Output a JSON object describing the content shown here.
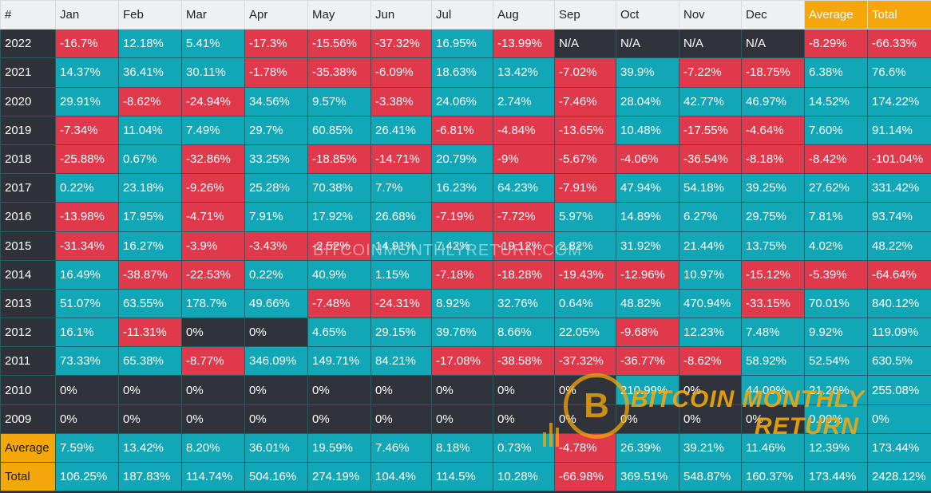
{
  "watermark": {
    "text": "BITCOINMONTHLYRETURN.COM",
    "logo_line1": "BITCOIN MONTHLY",
    "logo_line2": "RETURN"
  },
  "colors": {
    "positive": "#12a7b7",
    "negative": "#e0394c",
    "na": "#30343a",
    "highlight": "#f4a60b",
    "header": "#eef0f2"
  },
  "chart_data": {
    "type": "table",
    "columns": [
      "#",
      "Jan",
      "Feb",
      "Mar",
      "Apr",
      "May",
      "Jun",
      "Jul",
      "Aug",
      "Sep",
      "Oct",
      "Nov",
      "Dec",
      "Average",
      "Total"
    ],
    "rows": [
      {
        "label": "2022",
        "cells": [
          "-16.7%",
          "12.18%",
          "5.41%",
          "-17.3%",
          "-15.56%",
          "-37.32%",
          "16.95%",
          "-13.99%",
          "N/A",
          "N/A",
          "N/A",
          "N/A",
          "-8.29%",
          "-66.33%"
        ]
      },
      {
        "label": "2021",
        "cells": [
          "14.37%",
          "36.41%",
          "30.11%",
          "-1.78%",
          "-35.38%",
          "-6.09%",
          "18.63%",
          "13.42%",
          "-7.02%",
          "39.9%",
          "-7.22%",
          "-18.75%",
          "6.38%",
          "76.6%"
        ]
      },
      {
        "label": "2020",
        "cells": [
          "29.91%",
          "-8.62%",
          "-24.94%",
          "34.56%",
          "9.57%",
          "-3.38%",
          "24.06%",
          "2.74%",
          "-7.46%",
          "28.04%",
          "42.77%",
          "46.97%",
          "14.52%",
          "174.22%"
        ]
      },
      {
        "label": "2019",
        "cells": [
          "-7.34%",
          "11.04%",
          "7.49%",
          "29.7%",
          "60.85%",
          "26.41%",
          "-6.81%",
          "-4.84%",
          "-13.65%",
          "10.48%",
          "-17.55%",
          "-4.64%",
          "7.60%",
          "91.14%"
        ]
      },
      {
        "label": "2018",
        "cells": [
          "-25.88%",
          "0.67%",
          "-32.86%",
          "33.25%",
          "-18.85%",
          "-14.71%",
          "20.79%",
          "-9%",
          "-5.67%",
          "-4.06%",
          "-36.54%",
          "-8.18%",
          "-8.42%",
          "-101.04%"
        ]
      },
      {
        "label": "2017",
        "cells": [
          "0.22%",
          "23.18%",
          "-9.26%",
          "25.28%",
          "70.38%",
          "7.7%",
          "16.23%",
          "64.23%",
          "-7.91%",
          "47.94%",
          "54.18%",
          "39.25%",
          "27.62%",
          "331.42%"
        ]
      },
      {
        "label": "2016",
        "cells": [
          "-13.98%",
          "17.95%",
          "-4.71%",
          "7.91%",
          "17.92%",
          "26.68%",
          "-7.19%",
          "-7.72%",
          "5.97%",
          "14.89%",
          "6.27%",
          "29.75%",
          "7.81%",
          "93.74%"
        ]
      },
      {
        "label": "2015",
        "cells": [
          "-31.34%",
          "16.27%",
          "-3.9%",
          "-3.43%",
          "-2.52%",
          "14.91%",
          "7.42%",
          "-19.12%",
          "2.82%",
          "31.92%",
          "21.44%",
          "13.75%",
          "4.02%",
          "48.22%"
        ]
      },
      {
        "label": "2014",
        "cells": [
          "16.49%",
          "-38.87%",
          "-22.53%",
          "0.22%",
          "40.9%",
          "1.15%",
          "-7.18%",
          "-18.28%",
          "-19.43%",
          "-12.96%",
          "10.97%",
          "-15.12%",
          "-5.39%",
          "-64.64%"
        ]
      },
      {
        "label": "2013",
        "cells": [
          "51.07%",
          "63.55%",
          "178.7%",
          "49.66%",
          "-7.48%",
          "-24.31%",
          "8.92%",
          "32.76%",
          "0.64%",
          "48.82%",
          "470.94%",
          "-33.15%",
          "70.01%",
          "840.12%"
        ]
      },
      {
        "label": "2012",
        "cells": [
          "16.1%",
          "-11.31%",
          "0%",
          "0%",
          "4.65%",
          "29.15%",
          "39.76%",
          "8.66%",
          "22.05%",
          "-9.68%",
          "12.23%",
          "7.48%",
          "9.92%",
          "119.09%"
        ]
      },
      {
        "label": "2011",
        "cells": [
          "73.33%",
          "65.38%",
          "-8.77%",
          "346.09%",
          "149.71%",
          "84.21%",
          "-17.08%",
          "-38.58%",
          "-37.32%",
          "-36.77%",
          "-8.62%",
          "58.92%",
          "52.54%",
          "630.5%"
        ]
      },
      {
        "label": "2010",
        "cells": [
          "0%",
          "0%",
          "0%",
          "0%",
          "0%",
          "0%",
          "0%",
          "0%",
          "0%",
          "210.99%",
          "0%",
          "44.09%",
          "21.26%",
          "255.08%"
        ]
      },
      {
        "label": "2009",
        "cells": [
          "0%",
          "0%",
          "0%",
          "0%",
          "0%",
          "0%",
          "0%",
          "0%",
          "0%",
          "0%",
          "0%",
          "0%",
          "0.00%",
          "0%"
        ]
      },
      {
        "label": "Average",
        "cells": [
          "7.59%",
          "13.42%",
          "8.20%",
          "36.01%",
          "19.59%",
          "7.46%",
          "8.18%",
          "0.73%",
          "-4.78%",
          "26.39%",
          "39.21%",
          "11.46%",
          "12.39%",
          "173.44%"
        ]
      },
      {
        "label": "Total",
        "cells": [
          "106.25%",
          "187.83%",
          "114.74%",
          "504.16%",
          "274.19%",
          "104.4%",
          "114.5%",
          "10.28%",
          "-66.98%",
          "369.51%",
          "548.87%",
          "160.37%",
          "173.44%",
          "2428.12%"
        ]
      }
    ]
  }
}
